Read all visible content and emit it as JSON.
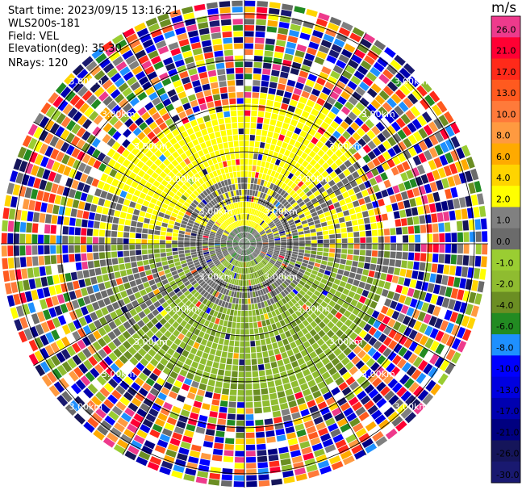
{
  "header": {
    "start_time_label": "Start time:",
    "start_time": "2023/09/15 13:16:21",
    "site": "WLS200s-181",
    "field_label": "Field:",
    "field": "VEL",
    "elevation_label": "Elevation(deg):",
    "elevation": "35.30",
    "nrays_label": "NRays:",
    "nrays": "120"
  },
  "colorbar": {
    "unit": "m/s",
    "bins": [
      {
        "value": 26.0,
        "label": "26.0",
        "color": "#ee3a8c"
      },
      {
        "value": 21.0,
        "label": "21.0",
        "color": "#ff0033"
      },
      {
        "value": 17.0,
        "label": "17.0",
        "color": "#ff2a1a"
      },
      {
        "value": 13.0,
        "label": "13.0",
        "color": "#ff5a1f"
      },
      {
        "value": 10.0,
        "label": "10.0",
        "color": "#ff7a3a"
      },
      {
        "value": 8.0,
        "label": "8.0",
        "color": "#ff9a40"
      },
      {
        "value": 6.0,
        "label": "6.0",
        "color": "#ffaa00"
      },
      {
        "value": 4.0,
        "label": "4.0",
        "color": "#ffd400"
      },
      {
        "value": 2.0,
        "label": "2.0",
        "color": "#ffff00"
      },
      {
        "value": 1.0,
        "label": "1.0",
        "color": "#808080"
      },
      {
        "value": 0.0,
        "label": "0.0",
        "color": "#6b6b6b"
      },
      {
        "value": -1.0,
        "label": "-1.0",
        "color": "#9acd32"
      },
      {
        "value": -2.0,
        "label": "-2.0",
        "color": "#8fbc30"
      },
      {
        "value": -4.0,
        "label": "-4.0",
        "color": "#6b8e23"
      },
      {
        "value": -6.0,
        "label": "-6.0",
        "color": "#228b22"
      },
      {
        "value": -8.0,
        "label": "-8.0",
        "color": "#1e90ff"
      },
      {
        "value": -10.0,
        "label": "-10.0",
        "color": "#0000ff"
      },
      {
        "value": -13.0,
        "label": "-13.0",
        "color": "#0000e0"
      },
      {
        "value": -17.0,
        "label": "-17.0",
        "color": "#0000b0"
      },
      {
        "value": -21.0,
        "label": "-21.0",
        "color": "#000080"
      },
      {
        "value": -26.0,
        "label": "-26.0",
        "color": "#15155a"
      },
      {
        "value": -30.0,
        "label": "-30.0",
        "color": "#191970"
      }
    ]
  },
  "chart_data": {
    "type": "heatmap",
    "projection": "polar-ppi",
    "field": "VEL",
    "unit": "m/s",
    "nrays": 120,
    "range_rings_km": [
      1.0,
      2.0,
      3.0,
      4.0,
      5.0
    ],
    "ring_label": "3.00km",
    "radial_spokes_deg": [
      0,
      30,
      60,
      90,
      120,
      150,
      180,
      210,
      240,
      270,
      300,
      330
    ],
    "value_regions": [
      {
        "region": "north-near",
        "range_km": [
          0.5,
          3.2
        ],
        "azimuth_deg": [
          270,
          90
        ],
        "typical_value": 3.0
      },
      {
        "region": "south-near",
        "range_km": [
          0.5,
          3.6
        ],
        "azimuth_deg": [
          90,
          270
        ],
        "typical_value": -1.5
      },
      {
        "region": "center",
        "range_km": [
          0.0,
          0.5
        ],
        "typical_value": 0.0
      },
      {
        "region": "outer-noise",
        "range_km": [
          3.6,
          5.3
        ],
        "typical_value": "random"
      }
    ]
  }
}
